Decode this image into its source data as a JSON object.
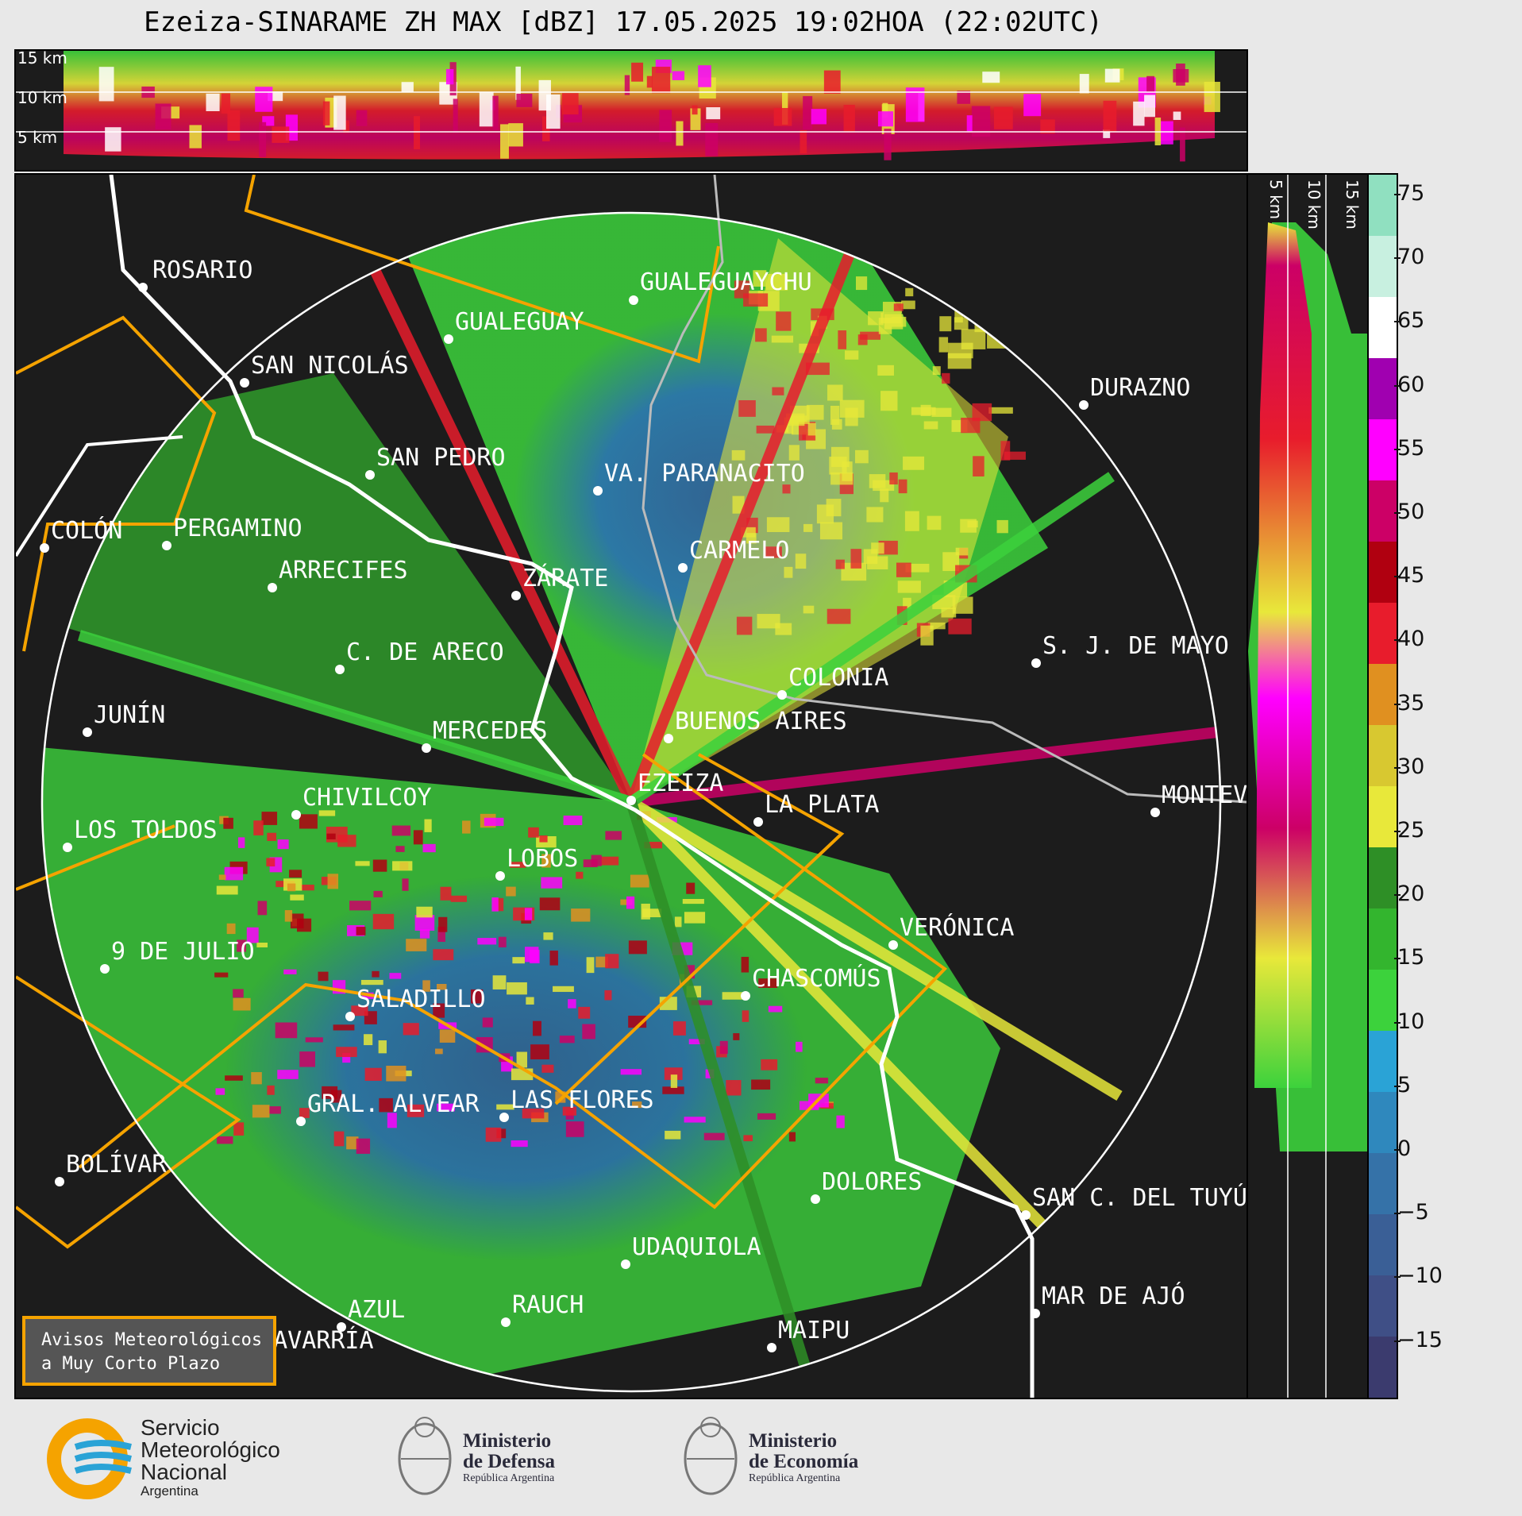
{
  "title": "Ezeiza-SINARAME ZH MAX [dBZ] 17.05.2025 19:02HOA (22:02UTC)",
  "top_panel": {
    "height_labels": [
      "15 km",
      "10 km",
      "5 km"
    ]
  },
  "side_panel": {
    "height_labels": [
      "5 km",
      "10 km",
      "15 km"
    ]
  },
  "colorbar": {
    "ticks": [
      "75",
      "70",
      "65",
      "60",
      "55",
      "50",
      "45",
      "40",
      "35",
      "30",
      "25",
      "20",
      "15",
      "10",
      "5",
      "0",
      "−5",
      "−10",
      "−15"
    ],
    "colors": [
      "#3b3b6e",
      "#3f4f86",
      "#3a5f96",
      "#3572a8",
      "#2f88bd",
      "#2aa3d6",
      "#3cd23c",
      "#33b52e",
      "#2e8f26",
      "#e8e83a",
      "#d8c830",
      "#e09020",
      "#e81c2c",
      "#b00010",
      "#cc0066",
      "#ff00ff",
      "#a000b0",
      "#ffffff",
      "#c8f0e0",
      "#90e0c0"
    ]
  },
  "cities": [
    {
      "name": "ROSARIO"
    },
    {
      "name": "GUALEGUAYCHU"
    },
    {
      "name": "GUALEGUAY"
    },
    {
      "name": "SAN NICOLÁS"
    },
    {
      "name": "DURAZNO"
    },
    {
      "name": "SAN PEDRO"
    },
    {
      "name": "VA. PARANACITO"
    },
    {
      "name": "COLÓN"
    },
    {
      "name": "PERGAMINO"
    },
    {
      "name": "CARMELO"
    },
    {
      "name": "ARRECIFES"
    },
    {
      "name": "ZÁRATE"
    },
    {
      "name": "C. DE ARECO"
    },
    {
      "name": "S. J. DE MAYO"
    },
    {
      "name": "COLONIA"
    },
    {
      "name": "JUNÍN"
    },
    {
      "name": "BUENOS AIRES"
    },
    {
      "name": "MERCEDES"
    },
    {
      "name": "EZEIZA"
    },
    {
      "name": "MONTEV"
    },
    {
      "name": "CHIVILCOY"
    },
    {
      "name": "LA PLATA"
    },
    {
      "name": "LOS TOLDOS"
    },
    {
      "name": "LOBOS"
    },
    {
      "name": "VERÓNICA"
    },
    {
      "name": "9 DE JULIO"
    },
    {
      "name": "CHASCOMÚS"
    },
    {
      "name": "SALADILLO"
    },
    {
      "name": "GRAL. ALVEAR"
    },
    {
      "name": "LAS FLORES"
    },
    {
      "name": "BOLÍVAR"
    },
    {
      "name": "DOLORES"
    },
    {
      "name": "SAN C. DEL TUYÚ"
    },
    {
      "name": "UDAQUIOLA"
    },
    {
      "name": "AZUL"
    },
    {
      "name": "RAUCH"
    },
    {
      "name": "MAR DE AJÓ"
    },
    {
      "name": "OLAVARRÍA"
    },
    {
      "name": "MAIPU"
    }
  ],
  "warning_legend": "Avisos Meteorológicos\na Muy Corto Plazo",
  "logos": {
    "smn": {
      "line1": "Servicio",
      "line2": "Meteorológico",
      "line3": "Nacional",
      "line4": "Argentina"
    },
    "defensa": {
      "line1": "Ministerio",
      "line2": "de Defensa",
      "line3": "República Argentina"
    },
    "economia": {
      "line1": "Ministerio",
      "line2": "de Economía",
      "line3": "República Argentina"
    }
  }
}
